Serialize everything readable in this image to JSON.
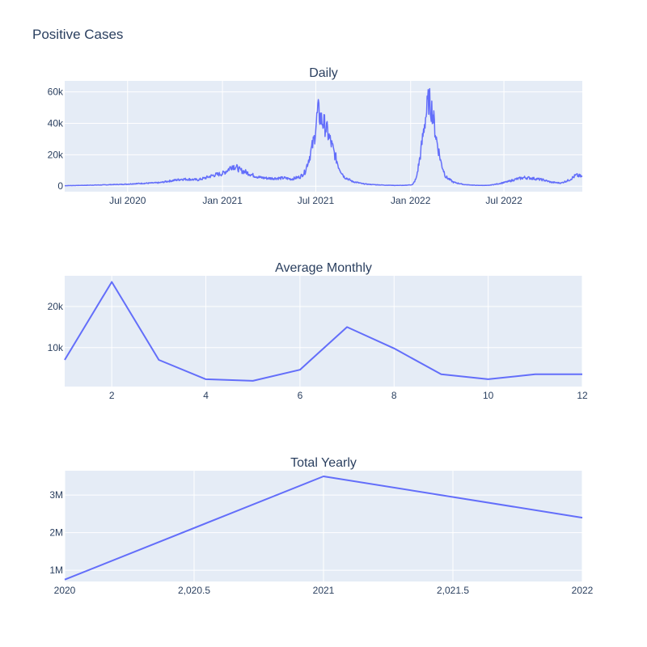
{
  "title": "Positive Cases",
  "colors": {
    "line": "#636efa",
    "plot_bg": "#e5ecf6",
    "grid": "#ffffff",
    "text": "#2a3f5f"
  },
  "chart_data": [
    {
      "id": "daily",
      "type": "line",
      "title": "Daily",
      "x_type": "date",
      "xlim": [
        "2020-03-01",
        "2022-11-30"
      ],
      "ylim": [
        -3500,
        67000
      ],
      "xtick_values": [
        "2020-07-01",
        "2021-01-01",
        "2021-07-01",
        "2022-01-01",
        "2022-07-01"
      ],
      "xtick_labels": [
        "Jul 2020",
        "Jan 2021",
        "Jul 2021",
        "Jan 2022",
        "Jul 2022"
      ],
      "ytick_values": [
        0,
        20000,
        40000,
        60000
      ],
      "ytick_labels": [
        "0",
        "20k",
        "40k",
        "60k"
      ],
      "weekly_points": [
        [
          "2020-03-01",
          300
        ],
        [
          "2020-03-15",
          400
        ],
        [
          "2020-04-01",
          500
        ],
        [
          "2020-04-15",
          600
        ],
        [
          "2020-05-01",
          700
        ],
        [
          "2020-05-15",
          800
        ],
        [
          "2020-06-01",
          1000
        ],
        [
          "2020-06-15",
          1100
        ],
        [
          "2020-07-01",
          1300
        ],
        [
          "2020-07-15",
          1600
        ],
        [
          "2020-08-01",
          1800
        ],
        [
          "2020-08-15",
          2000
        ],
        [
          "2020-09-01",
          2200
        ],
        [
          "2020-09-15",
          3000
        ],
        [
          "2020-10-01",
          3800
        ],
        [
          "2020-10-15",
          4500
        ],
        [
          "2020-11-01",
          4300
        ],
        [
          "2020-11-15",
          4000
        ],
        [
          "2020-12-01",
          5500
        ],
        [
          "2020-12-15",
          7000
        ],
        [
          "2021-01-01",
          8000
        ],
        [
          "2021-01-10",
          10000
        ],
        [
          "2021-01-20",
          13000
        ],
        [
          "2021-01-28",
          12000
        ],
        [
          "2021-02-05",
          10000
        ],
        [
          "2021-02-15",
          9000
        ],
        [
          "2021-03-01",
          7000
        ],
        [
          "2021-03-15",
          5500
        ],
        [
          "2021-04-01",
          5000
        ],
        [
          "2021-04-15",
          5000
        ],
        [
          "2021-05-01",
          5200
        ],
        [
          "2021-05-15",
          4500
        ],
        [
          "2021-06-01",
          6000
        ],
        [
          "2021-06-10",
          9000
        ],
        [
          "2021-06-20",
          20000
        ],
        [
          "2021-06-28",
          30000
        ],
        [
          "2021-07-05",
          48000
        ],
        [
          "2021-07-12",
          42000
        ],
        [
          "2021-07-20",
          38000
        ],
        [
          "2021-07-28",
          30000
        ],
        [
          "2021-08-05",
          22000
        ],
        [
          "2021-08-15",
          12000
        ],
        [
          "2021-08-25",
          6000
        ],
        [
          "2021-09-10",
          3000
        ],
        [
          "2021-10-01",
          1500
        ],
        [
          "2021-10-20",
          1000
        ],
        [
          "2021-11-10",
          700
        ],
        [
          "2021-12-01",
          500
        ],
        [
          "2021-12-20",
          500
        ],
        [
          "2022-01-05",
          1000
        ],
        [
          "2022-01-12",
          5000
        ],
        [
          "2022-01-20",
          20000
        ],
        [
          "2022-01-28",
          40000
        ],
        [
          "2022-02-05",
          55000
        ],
        [
          "2022-02-12",
          48000
        ],
        [
          "2022-02-20",
          30000
        ],
        [
          "2022-03-01",
          15000
        ],
        [
          "2022-03-10",
          6000
        ],
        [
          "2022-03-25",
          2500
        ],
        [
          "2022-04-15",
          1000
        ],
        [
          "2022-05-10",
          500
        ],
        [
          "2022-06-01",
          500
        ],
        [
          "2022-06-20",
          1500
        ],
        [
          "2022-07-10",
          3000
        ],
        [
          "2022-07-25",
          4500
        ],
        [
          "2022-08-10",
          5500
        ],
        [
          "2022-08-25",
          5000
        ],
        [
          "2022-09-15",
          4000
        ],
        [
          "2022-10-01",
          2500
        ],
        [
          "2022-10-20",
          2000
        ],
        [
          "2022-11-05",
          4000
        ],
        [
          "2022-11-18",
          7000
        ],
        [
          "2022-11-30",
          6000
        ]
      ]
    },
    {
      "id": "monthly",
      "type": "line",
      "title": "Average Monthly",
      "xlim": [
        1,
        12
      ],
      "ylim": [
        500,
        27500
      ],
      "xtick_values": [
        2,
        4,
        6,
        8,
        10,
        12
      ],
      "xtick_labels": [
        "2",
        "4",
        "6",
        "8",
        "10",
        "12"
      ],
      "ytick_values": [
        10000,
        20000
      ],
      "ytick_labels": [
        "10k",
        "20k"
      ],
      "x": [
        1,
        2,
        3,
        4,
        5,
        6,
        7,
        8,
        9,
        10,
        11,
        12
      ],
      "y": [
        7000,
        26000,
        7000,
        2300,
        1900,
        4600,
        15000,
        9800,
        3500,
        2300,
        3500,
        3500
      ]
    },
    {
      "id": "yearly",
      "type": "line",
      "title": "Total Yearly",
      "xlim": [
        2020,
        2022
      ],
      "ylim": [
        700000,
        3650000
      ],
      "xtick_values": [
        2020,
        2020.5,
        2021,
        2021.5,
        2022
      ],
      "xtick_labels": [
        "2020",
        "2,020.5",
        "2021",
        "2,021.5",
        "2022"
      ],
      "ytick_values": [
        1000000,
        2000000,
        3000000
      ],
      "ytick_labels": [
        "1M",
        "2M",
        "3M"
      ],
      "x": [
        2020,
        2021,
        2022
      ],
      "y": [
        750000,
        3500000,
        2400000
      ]
    }
  ]
}
